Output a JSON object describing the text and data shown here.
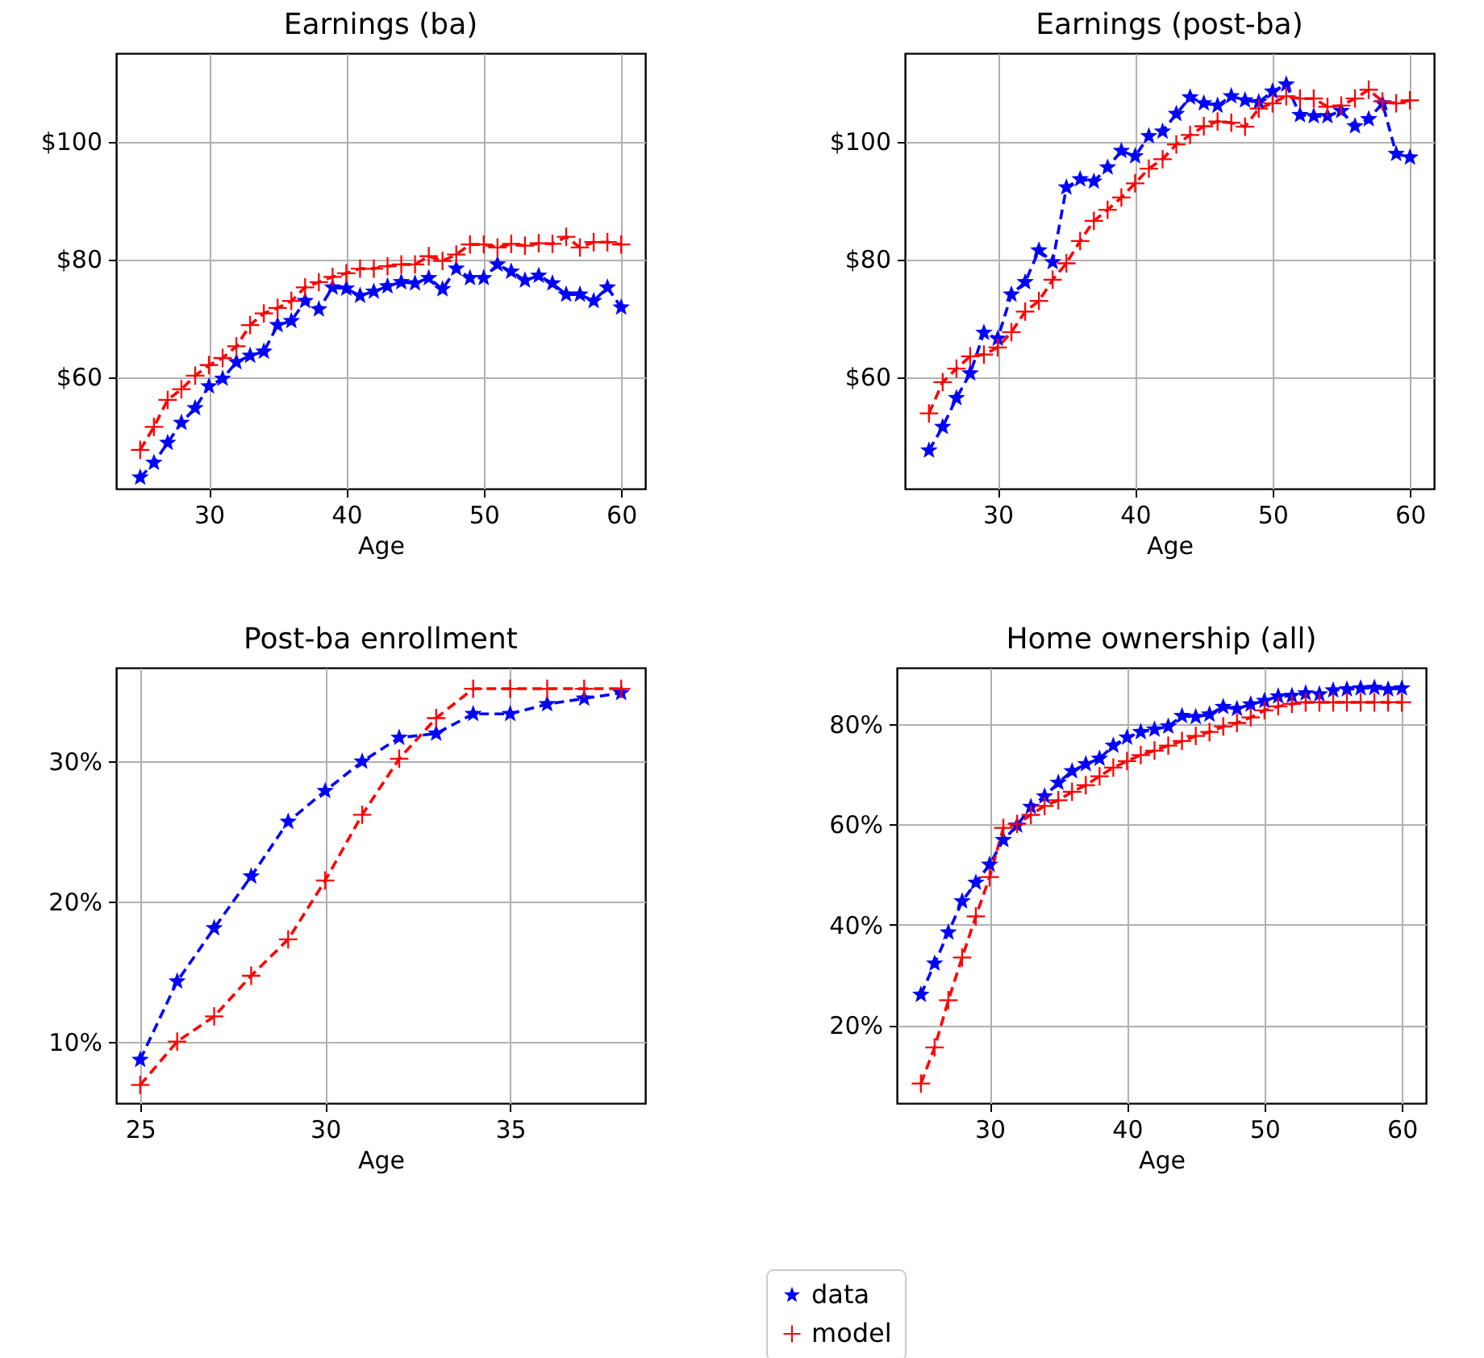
{
  "chart_data": [
    {
      "type": "line",
      "title": "Earnings (ba)",
      "xlabel": "Age",
      "x": [
        25,
        26,
        27,
        28,
        29,
        30,
        31,
        32,
        33,
        34,
        35,
        36,
        37,
        38,
        39,
        40,
        41,
        42,
        43,
        44,
        45,
        46,
        47,
        48,
        49,
        50,
        51,
        52,
        53,
        54,
        55,
        56,
        57,
        58,
        59,
        60
      ],
      "xlim": [
        23.25,
        61.75
      ],
      "xticks": [
        30,
        40,
        50,
        60
      ],
      "ylim": [
        41,
        115
      ],
      "yticks": [
        {
          "value": 60,
          "label": "$60"
        },
        {
          "value": 80,
          "label": "$80"
        },
        {
          "value": 100,
          "label": "$100"
        }
      ],
      "grid": true,
      "line_style": "dashed",
      "legend": "bottom",
      "series": [
        {
          "name": "data",
          "color": "#0000ff",
          "marker": "star",
          "values": [
            42.9,
            45.4,
            48.8,
            52.2,
            54.7,
            58.4,
            59.7,
            62.5,
            63.6,
            64.3,
            68.8,
            69.5,
            72.9,
            71.5,
            75.2,
            75.0,
            73.8,
            74.5,
            75.4,
            76.1,
            75.9,
            76.8,
            74.9,
            78.4,
            76.8,
            76.8,
            79.1,
            77.9,
            76.4,
            77.2,
            75.9,
            74.0,
            74.0,
            72.9,
            75.2,
            71.8
          ]
        },
        {
          "name": "model",
          "color": "#ff0000",
          "marker": "cross",
          "values": [
            47.6,
            51.5,
            56.1,
            57.9,
            60.2,
            62.0,
            63.2,
            65.2,
            68.8,
            70.8,
            71.7,
            72.9,
            75.2,
            76.1,
            77.0,
            77.6,
            78.4,
            78.4,
            78.8,
            79.1,
            79.1,
            80.5,
            79.7,
            80.8,
            82.5,
            82.5,
            82.0,
            82.6,
            82.3,
            82.7,
            82.6,
            83.8,
            82.0,
            82.9,
            82.9,
            82.5
          ]
        }
      ]
    },
    {
      "type": "line",
      "title": "Earnings (post-ba)",
      "xlabel": "Age",
      "x": [
        25,
        26,
        27,
        28,
        29,
        30,
        31,
        32,
        33,
        34,
        35,
        36,
        37,
        38,
        39,
        40,
        41,
        42,
        43,
        44,
        45,
        46,
        47,
        48,
        49,
        50,
        51,
        52,
        53,
        54,
        55,
        56,
        57,
        58,
        59,
        60
      ],
      "xlim": [
        23.25,
        61.75
      ],
      "xticks": [
        30,
        40,
        50,
        60
      ],
      "ylim": [
        41,
        115
      ],
      "yticks": [
        {
          "value": 60,
          "label": "$60"
        },
        {
          "value": 80,
          "label": "$80"
        },
        {
          "value": 100,
          "label": "$100"
        }
      ],
      "grid": true,
      "line_style": "dashed",
      "legend": "bottom",
      "series": [
        {
          "name": "data",
          "color": "#0000ff",
          "marker": "star",
          "values": [
            47.5,
            51.5,
            56.4,
            60.6,
            67.5,
            66.5,
            74.0,
            76.1,
            81.5,
            79.5,
            92.2,
            93.6,
            93.2,
            95.6,
            98.4,
            97.5,
            100.9,
            101.7,
            104.7,
            107.5,
            106.5,
            106.1,
            107.7,
            107.0,
            106.7,
            108.5,
            109.7,
            104.5,
            104.3,
            104.3,
            105.2,
            102.6,
            103.8,
            106.5,
            97.9,
            97.3
          ]
        },
        {
          "name": "model",
          "color": "#ff0000",
          "marker": "cross",
          "values": [
            53.8,
            59.1,
            61.4,
            63.5,
            63.8,
            65.0,
            67.6,
            71.1,
            72.9,
            76.5,
            79.3,
            83.1,
            86.5,
            88.4,
            90.5,
            92.9,
            95.4,
            97.0,
            99.5,
            101.1,
            102.6,
            103.4,
            103.2,
            102.5,
            105.6,
            106.5,
            107.7,
            107.3,
            107.3,
            105.9,
            106.1,
            107.3,
            108.8,
            106.8,
            106.5,
            107.0
          ]
        }
      ]
    },
    {
      "type": "line",
      "title": "Post-ba enrollment",
      "xlabel": "Age",
      "x": [
        25,
        26,
        27,
        28,
        29,
        30,
        31,
        32,
        33,
        34,
        35,
        36,
        37,
        38
      ],
      "xlim": [
        24.35,
        38.65
      ],
      "xticks": [
        25,
        30,
        35
      ],
      "ylim": [
        5.6,
        36.7
      ],
      "yticks": [
        {
          "value": 10,
          "label": "10%"
        },
        {
          "value": 20,
          "label": "20%"
        },
        {
          "value": 30,
          "label": "30%"
        }
      ],
      "grid": true,
      "line_style": "dashed",
      "legend": "bottom",
      "series": [
        {
          "name": "data",
          "color": "#0000ff",
          "marker": "star",
          "values": [
            8.7,
            14.3,
            18.1,
            21.8,
            25.7,
            27.9,
            30.0,
            31.7,
            32.0,
            33.4,
            33.4,
            34.1,
            34.5,
            34.9
          ]
        },
        {
          "name": "model",
          "color": "#ff0000",
          "marker": "cross",
          "values": [
            6.9,
            10.0,
            11.8,
            14.7,
            17.3,
            21.5,
            26.2,
            30.2,
            33.1,
            35.2,
            35.2,
            35.2,
            35.2,
            35.2
          ]
        }
      ]
    },
    {
      "type": "line",
      "title": "Home ownership (all)",
      "xlabel": "Age",
      "x": [
        25,
        26,
        27,
        28,
        29,
        30,
        31,
        32,
        33,
        34,
        35,
        36,
        37,
        38,
        39,
        40,
        41,
        42,
        43,
        44,
        45,
        46,
        47,
        48,
        49,
        50,
        51,
        52,
        53,
        54,
        55,
        56,
        57,
        58,
        59,
        60
      ],
      "xlim": [
        23.25,
        61.75
      ],
      "xticks": [
        30,
        40,
        50,
        60
      ],
      "ylim": [
        4.5,
        91.2
      ],
      "yticks": [
        {
          "value": 20,
          "label": "20%"
        },
        {
          "value": 40,
          "label": "40%"
        },
        {
          "value": 60,
          "label": "60%"
        },
        {
          "value": 80,
          "label": "80%"
        }
      ],
      "grid": true,
      "line_style": "dashed",
      "legend": "bottom",
      "series": [
        {
          "name": "data",
          "color": "#0000ff",
          "marker": "star",
          "values": [
            26.1,
            32.3,
            38.5,
            44.7,
            48.4,
            52.0,
            56.9,
            59.8,
            63.5,
            65.6,
            68.3,
            70.6,
            72.0,
            73.1,
            75.7,
            77.3,
            78.4,
            78.9,
            79.5,
            81.6,
            81.4,
            81.9,
            83.4,
            83.0,
            83.9,
            84.6,
            85.5,
            85.6,
            86.1,
            85.9,
            86.7,
            86.9,
            87.1,
            87.2,
            86.9,
            87.1
          ]
        },
        {
          "name": "model",
          "color": "#ff0000",
          "marker": "cross",
          "values": [
            8.4,
            15.6,
            25.0,
            33.5,
            41.7,
            49.5,
            59.3,
            60.1,
            61.9,
            63.7,
            64.8,
            66.5,
            67.8,
            69.6,
            71.3,
            72.6,
            73.8,
            74.7,
            75.7,
            76.6,
            77.6,
            78.4,
            79.5,
            80.2,
            81.3,
            82.7,
            83.5,
            84.0,
            84.3,
            84.3,
            84.3,
            84.3,
            84.3,
            84.3,
            84.3,
            84.3
          ]
        }
      ]
    }
  ]
}
